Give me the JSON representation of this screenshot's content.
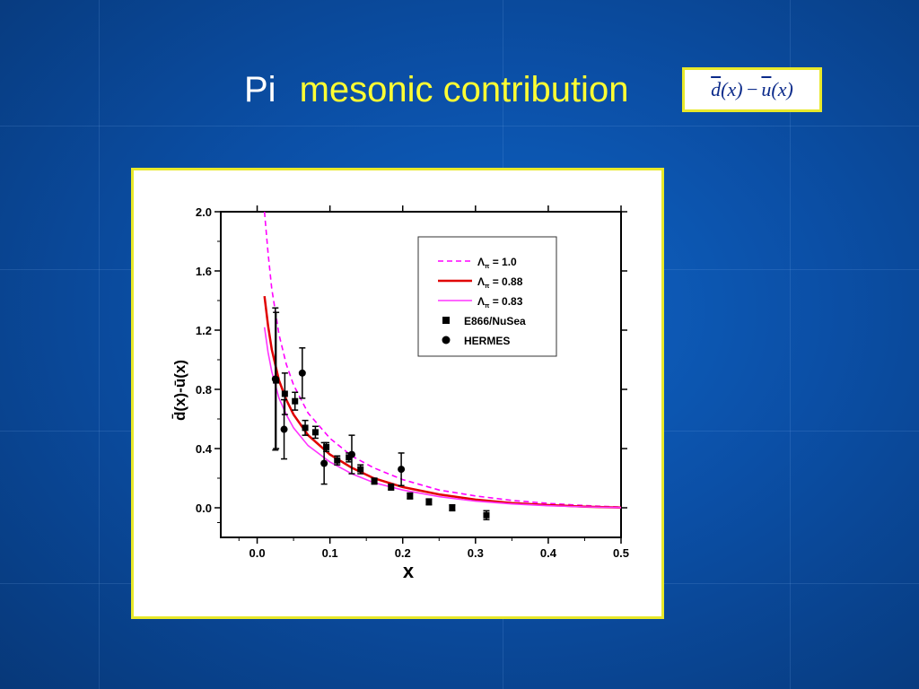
{
  "slide": {
    "title_word1": "Pi",
    "title_rest": "mesonic contribution",
    "formula": {
      "d": "d",
      "x1": "(x)",
      "minus": "−",
      "u": "u",
      "x2": "(x)"
    }
  },
  "colors": {
    "background": "#0b4fa6",
    "title_white": "#ffffff",
    "title_yellow": "#ffff33",
    "panel_border": "#e8e82a",
    "lambda_1_0": "#ff00ff",
    "lambda_0_88": "#e00000",
    "lambda_0_83": "#ff33ff"
  },
  "chart_data": {
    "type": "line",
    "xlabel": "x",
    "ylabel": "d̄(x)-ū(x)",
    "xlim": [
      -0.05,
      0.5
    ],
    "ylim": [
      -0.2,
      2.0
    ],
    "x_ticks": [
      0.0,
      0.1,
      0.2,
      0.3,
      0.4,
      0.5
    ],
    "x_tick_labels": [
      "0.0",
      "0.1",
      "0.2",
      "0.3",
      "0.4",
      "0.5"
    ],
    "y_ticks": [
      0.0,
      0.4,
      0.8,
      1.2,
      1.6,
      2.0
    ],
    "y_tick_labels": [
      "0.0",
      "0.4",
      "0.8",
      "1.2",
      "1.6",
      "2.0"
    ],
    "grid": false,
    "legend_position": "top-right",
    "series": [
      {
        "name": "Λπ = 1.0",
        "label_lambda": "Λ",
        "label_sub": "π",
        "label_value": "= 1.0",
        "style": "dashed",
        "color": "#ff00ff",
        "x": [
          0.01,
          0.015,
          0.02,
          0.03,
          0.04,
          0.05,
          0.07,
          0.1,
          0.13,
          0.16,
          0.2,
          0.25,
          0.3,
          0.35,
          0.4,
          0.45,
          0.5
        ],
        "y": [
          2.0,
          1.72,
          1.48,
          1.17,
          0.97,
          0.83,
          0.64,
          0.47,
          0.35,
          0.27,
          0.19,
          0.12,
          0.08,
          0.05,
          0.03,
          0.015,
          0.005
        ]
      },
      {
        "name": "Λπ = 0.88",
        "label_lambda": "Λ",
        "label_sub": "π",
        "label_value": "= 0.88",
        "style": "solid",
        "color": "#e00000",
        "x": [
          0.01,
          0.015,
          0.02,
          0.03,
          0.04,
          0.05,
          0.07,
          0.1,
          0.13,
          0.16,
          0.2,
          0.25,
          0.3,
          0.35,
          0.4,
          0.45,
          0.5
        ],
        "y": [
          1.43,
          1.23,
          1.07,
          0.86,
          0.73,
          0.63,
          0.49,
          0.36,
          0.27,
          0.2,
          0.14,
          0.09,
          0.055,
          0.032,
          0.018,
          0.008,
          0.002
        ]
      },
      {
        "name": "Λπ = 0.83",
        "label_lambda": "Λ",
        "label_sub": "π",
        "label_value": "= 0.83",
        "style": "solid",
        "color": "#ff33ff",
        "x": [
          0.01,
          0.015,
          0.02,
          0.03,
          0.04,
          0.05,
          0.07,
          0.1,
          0.13,
          0.16,
          0.2,
          0.25,
          0.3,
          0.35,
          0.4,
          0.45,
          0.5
        ],
        "y": [
          1.22,
          1.05,
          0.92,
          0.74,
          0.63,
          0.54,
          0.42,
          0.31,
          0.23,
          0.17,
          0.12,
          0.075,
          0.045,
          0.026,
          0.014,
          0.006,
          0.001
        ]
      },
      {
        "name": "E866/NuSea",
        "marker": "square",
        "color": "#000000",
        "points": [
          {
            "x": 0.026,
            "y": 0.86,
            "err": 0.46
          },
          {
            "x": 0.038,
            "y": 0.77,
            "err": 0.14
          },
          {
            "x": 0.052,
            "y": 0.72,
            "err": 0.06
          },
          {
            "x": 0.066,
            "y": 0.54,
            "err": 0.05
          },
          {
            "x": 0.08,
            "y": 0.51,
            "err": 0.04
          },
          {
            "x": 0.095,
            "y": 0.41,
            "err": 0.03
          },
          {
            "x": 0.11,
            "y": 0.32,
            "err": 0.03
          },
          {
            "x": 0.126,
            "y": 0.34,
            "err": 0.03
          },
          {
            "x": 0.142,
            "y": 0.26,
            "err": 0.03
          },
          {
            "x": 0.161,
            "y": 0.18,
            "err": 0.02
          },
          {
            "x": 0.184,
            "y": 0.14,
            "err": 0.02
          },
          {
            "x": 0.21,
            "y": 0.08,
            "err": 0.02
          },
          {
            "x": 0.236,
            "y": 0.04,
            "err": 0.02
          },
          {
            "x": 0.268,
            "y": 0.0,
            "err": 0.02
          },
          {
            "x": 0.315,
            "y": -0.05,
            "err": 0.03
          }
        ]
      },
      {
        "name": "HERMES",
        "marker": "circle",
        "color": "#000000",
        "points": [
          {
            "x": 0.025,
            "y": 0.87,
            "err": 0.48
          },
          {
            "x": 0.037,
            "y": 0.53,
            "err": 0.2
          },
          {
            "x": 0.062,
            "y": 0.91,
            "err": 0.17
          },
          {
            "x": 0.092,
            "y": 0.3,
            "err": 0.14
          },
          {
            "x": 0.13,
            "y": 0.36,
            "err": 0.13
          },
          {
            "x": 0.198,
            "y": 0.26,
            "err": 0.11
          }
        ]
      }
    ]
  }
}
